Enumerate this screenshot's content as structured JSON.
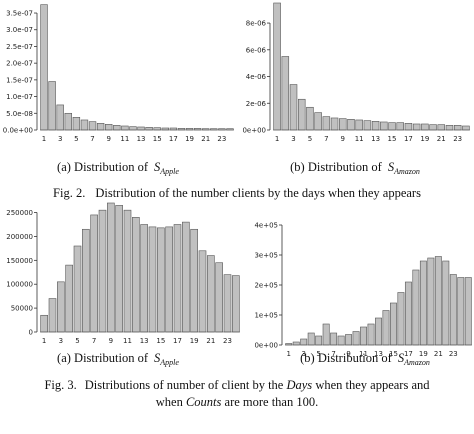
{
  "chart_data": [
    {
      "type": "bar",
      "caption_prefix": "(a) Distribution of",
      "caption_symbol": "S",
      "caption_subscript": "Apple",
      "categories": [
        "1",
        null,
        "3",
        null,
        "5",
        null,
        "7",
        null,
        "9",
        null,
        "11",
        null,
        "13",
        null,
        "15",
        null,
        "17",
        null,
        "19",
        null,
        "21",
        null,
        "23",
        null
      ],
      "values": [
        3.75e-07,
        1.45e-07,
        7.5e-08,
        5e-08,
        3.8e-08,
        3e-08,
        2.5e-08,
        2e-08,
        1.7e-08,
        1.4e-08,
        1.2e-08,
        1e-08,
        9e-09,
        8e-09,
        7e-09,
        6e-09,
        6e-09,
        5e-09,
        5e-09,
        5e-09,
        4e-09,
        4e-09,
        4e-09,
        4e-09
      ],
      "color": "#c0c0c0",
      "ylim": [
        0,
        3.8e-07
      ],
      "yticks": [
        {
          "value": 0,
          "label": "0.0e+00"
        },
        {
          "value": 5e-08,
          "label": "5.0e-08"
        },
        {
          "value": 1e-07,
          "label": "1.0e-07"
        },
        {
          "value": 1.5e-07,
          "label": "1.5e-07"
        },
        {
          "value": 2e-07,
          "label": "2.0e-07"
        },
        {
          "value": 2.5e-07,
          "label": "2.5e-07"
        },
        {
          "value": 3e-07,
          "label": "3.0e-07"
        },
        {
          "value": 3.5e-07,
          "label": "3.5e-07"
        }
      ]
    },
    {
      "type": "bar",
      "caption_prefix": "(b) Distribution of",
      "caption_symbol": "S",
      "caption_subscript": "Amazon",
      "categories": [
        "1",
        null,
        "3",
        null,
        "5",
        null,
        "7",
        null,
        "9",
        null,
        "11",
        null,
        "13",
        null,
        "15",
        null,
        "17",
        null,
        "19",
        null,
        "21",
        null,
        "23",
        null
      ],
      "values": [
        9.5e-06,
        5.5e-06,
        3.4e-06,
        2.3e-06,
        1.7e-06,
        1.3e-06,
        1e-06,
        9e-07,
        8.5e-07,
        8e-07,
        7.5e-07,
        7e-07,
        6.5e-07,
        6e-07,
        5.5e-07,
        5.5e-07,
        5e-07,
        4.5e-07,
        4.5e-07,
        4e-07,
        4e-07,
        3.5e-07,
        3.5e-07,
        3e-07
      ],
      "color": "#c0c0c0",
      "ylim": [
        0,
        9.5e-06
      ],
      "yticks": [
        {
          "value": 0,
          "label": "0e+00"
        },
        {
          "value": 2e-06,
          "label": "2e-06"
        },
        {
          "value": 4e-06,
          "label": "4e-06"
        },
        {
          "value": 6e-06,
          "label": "6e-06"
        },
        {
          "value": 8e-06,
          "label": "8e-06"
        }
      ]
    },
    {
      "type": "bar",
      "caption_prefix": "(a) Distribution of",
      "caption_symbol": "S",
      "caption_subscript": "Apple",
      "categories": [
        "1",
        null,
        "3",
        null,
        "5",
        null,
        "7",
        null,
        "9",
        null,
        "11",
        null,
        "13",
        null,
        "15",
        null,
        "17",
        null,
        "19",
        null,
        "21",
        null,
        "23",
        null
      ],
      "values": [
        35000,
        70000,
        105000,
        140000,
        180000,
        215000,
        245000,
        255000,
        270000,
        265000,
        255000,
        240000,
        225000,
        220000,
        218000,
        220000,
        225000,
        230000,
        215000,
        170000,
        160000,
        145000,
        120000,
        118000
      ],
      "color": "#c0c0c0",
      "ylim": [
        0,
        270000
      ],
      "yticks": [
        0,
        50000,
        100000,
        150000,
        200000,
        250000
      ]
    },
    {
      "type": "bar",
      "caption_prefix": "(b) Distribution of",
      "caption_symbol": "S",
      "caption_subscript": "Amazon",
      "categories": [
        "1",
        null,
        "3",
        null,
        "5",
        null,
        "7",
        null,
        "9",
        null,
        "11",
        null,
        "13",
        null,
        "15",
        null,
        "17",
        null,
        "19",
        null,
        "21",
        null,
        "23",
        null,
        null
      ],
      "values": [
        5000,
        10000,
        20000,
        40000,
        30000,
        70000,
        40000,
        30000,
        35000,
        45000,
        60000,
        70000,
        90000,
        115000,
        140000,
        175000,
        210000,
        250000,
        280000,
        290000,
        295000,
        280000,
        235000,
        225000,
        225000
      ],
      "color": "#c0c0c0",
      "ylim": [
        0,
        410000
      ],
      "yticks": [
        {
          "value": 0,
          "label": "0e+00"
        },
        {
          "value": 100000,
          "label": "1e+05"
        },
        {
          "value": 200000,
          "label": "2e+05"
        },
        {
          "value": 300000,
          "label": "3e+05"
        },
        {
          "value": 400000,
          "label": "4e+05"
        }
      ]
    }
  ],
  "figures": [
    {
      "label": "Fig. 2.",
      "text": "Distribution of the number clients by the days when they appears"
    },
    {
      "label": "Fig. 3.",
      "text_1": "Distributions of number of client by the",
      "italic_1": "Days",
      "text_2": "when they appears and",
      "text_3": "when",
      "italic_2": "Counts",
      "text_4": "are more than 100."
    }
  ]
}
